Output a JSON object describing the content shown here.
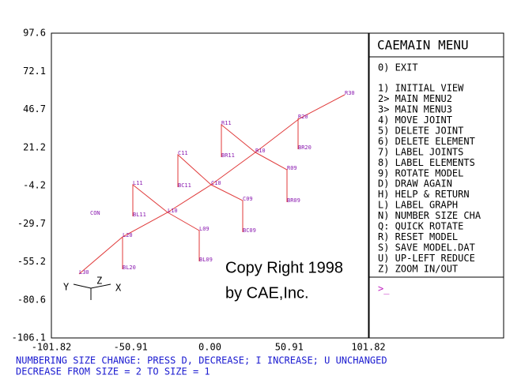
{
  "plot": {
    "yticks": [
      "97.6",
      "72.1",
      "46.7",
      "21.2",
      "-4.2",
      "-29.7",
      "-55.2",
      "-80.6",
      "-106.1"
    ],
    "xticks": [
      "-101.82",
      "-50.91",
      "0.00",
      "50.91",
      "101.82"
    ],
    "joints": [
      "L30",
      "BL20",
      "L20",
      "BL11",
      "L11",
      "L10",
      "CON",
      "BC11",
      "C11",
      "C10",
      "L09",
      "BL09",
      "C09",
      "BC09",
      "BR11",
      "R11",
      "R10",
      "R09",
      "BR09",
      "BR20",
      "R20",
      "R30"
    ],
    "triad": [
      "Y",
      "Z",
      "X"
    ],
    "copyright": [
      "Copy Right 1998",
      "by CAE,Inc."
    ]
  },
  "menu": {
    "title": "CAEMAIN MENU",
    "items": [
      "0) EXIT",
      "1) INITIAL VIEW",
      "2> MAIN MENU2",
      "3> MAIN MENU3",
      "4) MOVE JOINT",
      "5) DELETE JOINT",
      "6) DELETE ELEMENT",
      "7) LABEL JOINTS",
      "8) LABEL ELEMENTS",
      "9) ROTATE MODEL",
      "D) DRAW AGAIN",
      "H) HELP & RETURN",
      "L) LABEL GRAPH",
      "N) NUMBER SIZE CHA",
      "Q: QUICK ROTATE",
      "R) RESET MODEL",
      "S) SAVE MODEL.DAT",
      "U) UP-LEFT REDUCE",
      "Z) ZOOM IN/OUT"
    ],
    "prompt": ">_"
  },
  "status": [
    "NUMBERING SIZE CHANGE: PRESS  D, DECREASE;  I  INCREASE;  U  UNCHANGED",
    "DECREASE FROM SIZE =  2   TO SIZE =  1"
  ]
}
